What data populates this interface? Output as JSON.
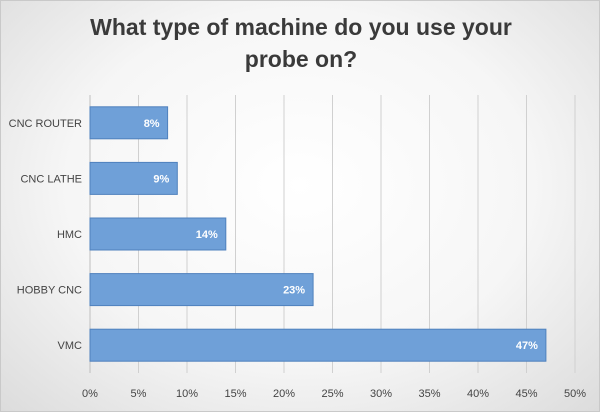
{
  "chart_data": {
    "type": "bar",
    "orientation": "horizontal",
    "title": "What type of machine do you use your probe on?",
    "categories": [
      "CNC ROUTER",
      "CNC LATHE",
      "HMC",
      "HOBBY CNC",
      "VMC"
    ],
    "values": [
      8,
      9,
      14,
      23,
      47
    ],
    "value_labels": [
      "8%",
      "9%",
      "14%",
      "23%",
      "47%"
    ],
    "x_ticks": [
      0,
      5,
      10,
      15,
      20,
      25,
      30,
      35,
      40,
      45,
      50
    ],
    "x_tick_labels": [
      "0%",
      "5%",
      "10%",
      "15%",
      "20%",
      "25%",
      "30%",
      "35%",
      "40%",
      "45%",
      "50%"
    ],
    "xlim": [
      0,
      50
    ],
    "grid": true,
    "bar_color": "#6fa0d8",
    "bar_border_color": "#4f81bd"
  }
}
